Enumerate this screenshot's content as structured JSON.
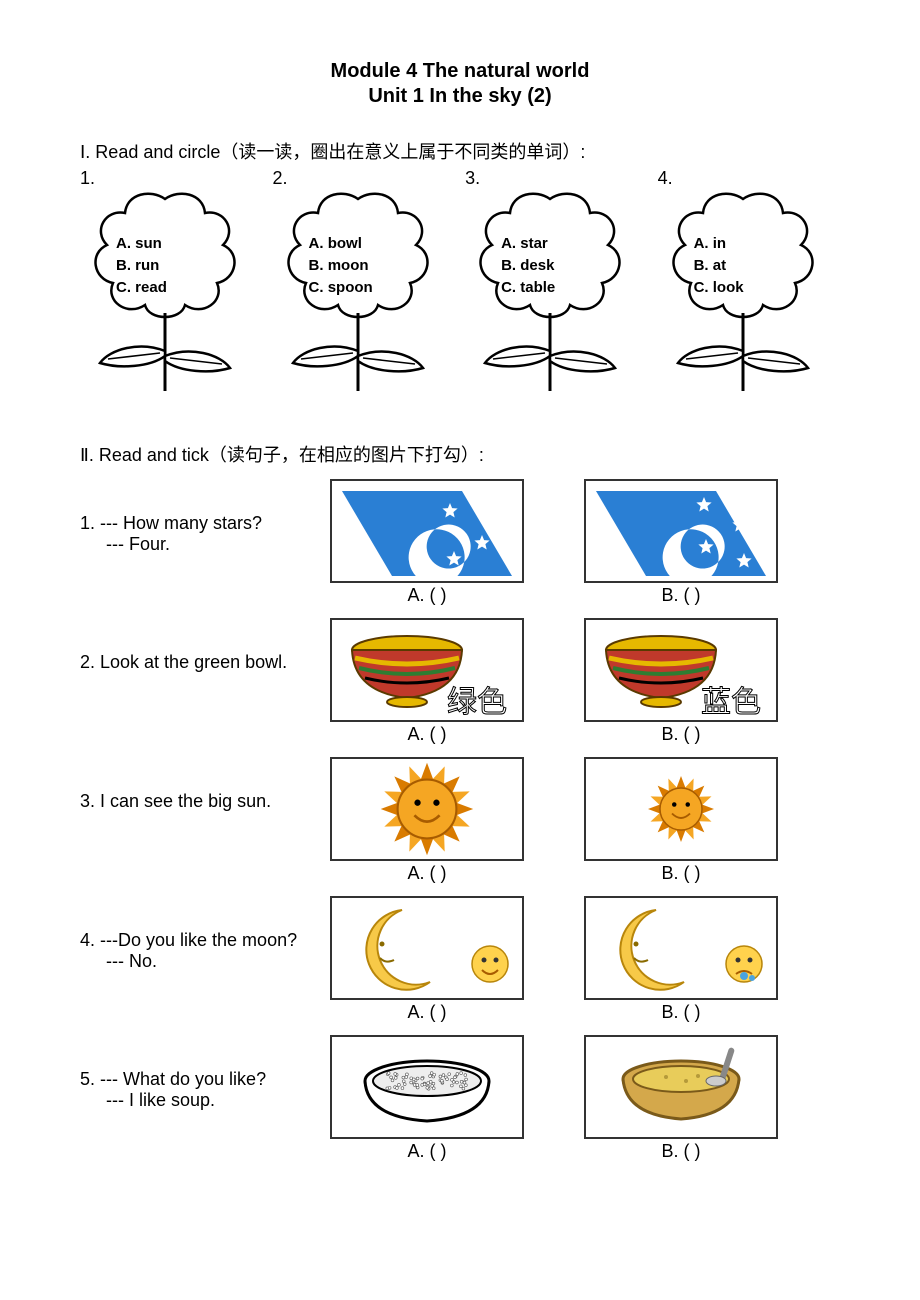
{
  "header": {
    "module": "Module 4    The natural world",
    "unit": "Unit 1    In the sky (2)"
  },
  "section1": {
    "heading": "Ⅰ. Read and circle（读一读，圈出在意义上属于不同类的单词）:",
    "items": [
      {
        "num": "1.",
        "opts": [
          "A. sun",
          "B. run",
          "C. read"
        ]
      },
      {
        "num": "2.",
        "opts": [
          "A. bowl",
          "B. moon",
          "C. spoon"
        ]
      },
      {
        "num": "3.",
        "opts": [
          "A. star",
          "B. desk",
          "C. table"
        ]
      },
      {
        "num": "4.",
        "opts": [
          "A. in",
          "B. at",
          "C. look"
        ]
      }
    ]
  },
  "section2": {
    "heading": "Ⅱ. Read and tick（读句子，在相应的图片下打勾）:",
    "caption_a": "A. (      )",
    "caption_b": "B. (      )",
    "rows": [
      {
        "lines": [
          "1. --- How many stars?",
          "--- Four."
        ],
        "indent2": true,
        "imgA": "sky3",
        "imgB": "sky4"
      },
      {
        "lines": [
          "2. Look at the green bowl."
        ],
        "indent2": false,
        "imgA": "bowl_green",
        "imgB": "bowl_blue"
      },
      {
        "lines": [
          "3. I can see the big sun."
        ],
        "indent2": false,
        "imgA": "sun_big",
        "imgB": "sun_small"
      },
      {
        "lines": [
          "4. ---Do you like the moon?",
          "--- No."
        ],
        "indent2": true,
        "imgA": "moon_happy",
        "imgB": "moon_sad"
      },
      {
        "lines": [
          "5. --- What do you like?",
          "--- I like soup."
        ],
        "indent2": true,
        "imgA": "rice",
        "imgB": "soup"
      }
    ],
    "bowl_green_label": "绿色",
    "bowl_blue_label": "蓝色"
  },
  "colors": {
    "sky_blue": "#2a7fd4",
    "sun_orange": "#f5a623",
    "sun_dark": "#d97b00",
    "moon_yellow": "#f7c948",
    "moon_shadow": "#b8860b",
    "bowl_red": "#c0392b",
    "bowl_gold": "#e6b800",
    "bowl_green": "#2e7d32",
    "rice_gray": "#666",
    "soup_yellow": "#e8cc5a",
    "soup_bowl": "#d4a84b",
    "face_happy": "#ffd24d",
    "face_sad": "#ffd24d",
    "tear": "#4aa3df"
  }
}
